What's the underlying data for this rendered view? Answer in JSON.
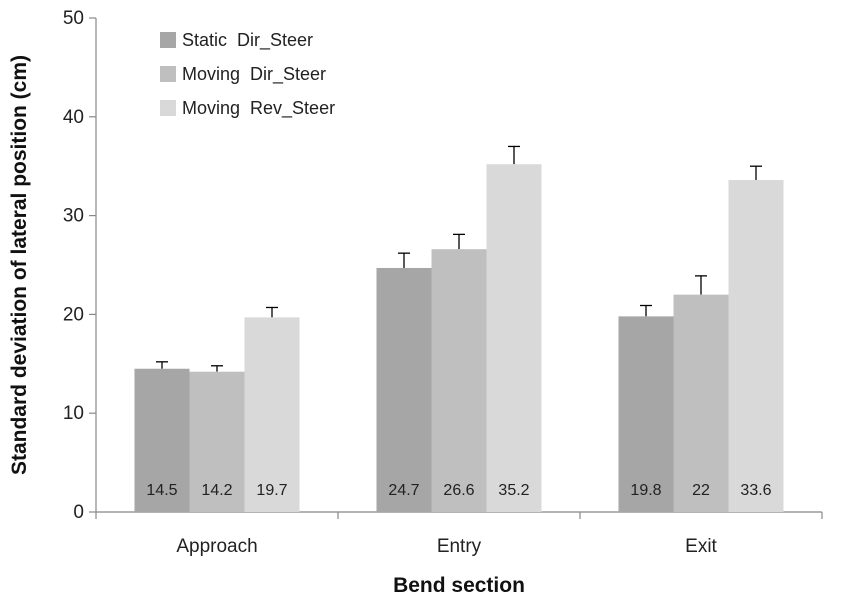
{
  "chart_data": {
    "type": "bar",
    "categories": [
      "Approach",
      "Entry",
      "Exit"
    ],
    "series": [
      {
        "name": "Static  Dir_Steer",
        "color": "#a6a6a6",
        "values": [
          14.5,
          24.7,
          19.8
        ],
        "errors": [
          0.7,
          1.5,
          1.1
        ],
        "labels": [
          "14.5",
          "24.7",
          "19.8"
        ]
      },
      {
        "name": "Moving  Dir_Steer",
        "color": "#bfbfbf",
        "values": [
          14.2,
          26.6,
          22.0
        ],
        "errors": [
          0.6,
          1.5,
          1.9
        ],
        "labels": [
          "14.2",
          "26.6",
          "22"
        ]
      },
      {
        "name": "Moving  Rev_Steer",
        "color": "#d9d9d9",
        "values": [
          19.7,
          35.2,
          33.6
        ],
        "errors": [
          1.0,
          1.8,
          1.4
        ],
        "labels": [
          "19.7",
          "35.2",
          "33.6"
        ]
      }
    ],
    "xlabel": "Bend section",
    "ylabel": "Standard deviation of lateral position (cm)",
    "ylim": [
      0,
      50
    ],
    "yticks": [
      0,
      10,
      20,
      30,
      40,
      50
    ],
    "ytick_labels": [
      "0",
      "10",
      "20",
      "30",
      "40",
      "50"
    ],
    "grid": false,
    "legend_position": "top-left",
    "error_bars": true
  }
}
